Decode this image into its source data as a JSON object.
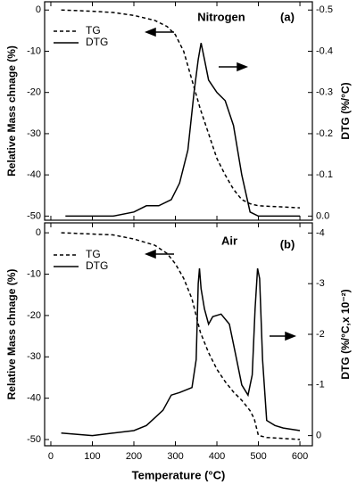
{
  "chart_data": [
    {
      "type": "line",
      "ylabel": "Relative Mass chnage (%)",
      "y2label": "DTG (%/°C)",
      "annotations": [
        "Nitrogen",
        "(a)"
      ],
      "xlim": [
        -15,
        630
      ],
      "xticks": [
        0,
        100,
        200,
        300,
        400,
        500,
        600
      ],
      "ylim": [
        -51,
        2
      ],
      "yticks": [
        0,
        -10,
        -20,
        -30,
        -40,
        -50
      ],
      "y2lim": [
        0.01,
        -0.52
      ],
      "y2ticks": [
        -0.5,
        -0.4,
        -0.3,
        -0.2,
        -0.1,
        {
          "value": 0,
          "label": "0.0"
        }
      ],
      "series": [
        {
          "name": "TG",
          "color": "#000000",
          "style": "dashed",
          "x": [
            25,
            100,
            150,
            200,
            250,
            280,
            300,
            320,
            340,
            360,
            380,
            400,
            420,
            440,
            460,
            480,
            500,
            600
          ],
          "values": [
            0,
            -0.3,
            -0.6,
            -1.3,
            -2.5,
            -4,
            -6,
            -10,
            -17,
            -24,
            -30,
            -36,
            -40,
            -43.5,
            -46,
            -47,
            -47.5,
            -48
          ]
        },
        {
          "name": "DTG",
          "color": "#000000",
          "style": "solid",
          "axis": "y2",
          "x": [
            35,
            150,
            200,
            230,
            260,
            290,
            310,
            330,
            345,
            355,
            362,
            370,
            380,
            400,
            420,
            440,
            460,
            480,
            500,
            600
          ],
          "values": [
            0,
            0,
            -0.01,
            -0.025,
            -0.025,
            -0.04,
            -0.08,
            -0.16,
            -0.3,
            -0.38,
            -0.42,
            -0.38,
            -0.33,
            -0.3,
            -0.28,
            -0.22,
            -0.1,
            -0.01,
            0,
            0
          ]
        }
      ]
    },
    {
      "type": "line",
      "xlabel": "Temperature (°C)",
      "ylabel": "Relative Mass chnage (%)",
      "y2label": "DTG (%/°C,x 10⁻²)",
      "annotations": [
        "Air",
        "(b)"
      ],
      "xlim": [
        -15,
        630
      ],
      "xticks": [
        0,
        100,
        200,
        300,
        400,
        500,
        600
      ],
      "ylim": [
        -51.5,
        2.4
      ],
      "yticks": [
        0,
        -10,
        -20,
        -30,
        -40,
        -50
      ],
      "y2lim": [
        0.2,
        -4.2
      ],
      "y2ticks": [
        -4,
        -3,
        -2,
        -1,
        0
      ],
      "series": [
        {
          "name": "TG",
          "color": "#000000",
          "style": "dashed",
          "x": [
            25,
            150,
            200,
            250,
            280,
            300,
            320,
            340,
            360,
            380,
            400,
            420,
            440,
            460,
            480,
            490,
            500,
            520,
            600
          ],
          "values": [
            0,
            -0.5,
            -1.5,
            -3,
            -5,
            -7.5,
            -11,
            -16,
            -24,
            -29,
            -33,
            -36,
            -38.5,
            -40.5,
            -43,
            -45,
            -49,
            -49.5,
            -50
          ]
        },
        {
          "name": "DTG",
          "color": "#000000",
          "style": "solid",
          "axis": "y2",
          "x": [
            25,
            100,
            150,
            200,
            230,
            250,
            270,
            290,
            310,
            340,
            350,
            355,
            358,
            362,
            370,
            380,
            390,
            410,
            430,
            445,
            460,
            475,
            485,
            492,
            498,
            503,
            510,
            520,
            540,
            560,
            600
          ],
          "values": [
            -0.05,
            0,
            -0.05,
            -0.1,
            -0.2,
            -0.35,
            -0.5,
            -0.8,
            -0.85,
            -0.95,
            -1.5,
            -3,
            -3.3,
            -2.9,
            -2.5,
            -2.2,
            -2.35,
            -2.4,
            -2.2,
            -1.6,
            -1,
            -0.8,
            -1.2,
            -2.5,
            -3.3,
            -3.1,
            -1.5,
            -0.3,
            -0.2,
            -0.15,
            -0.1
          ]
        }
      ]
    }
  ]
}
